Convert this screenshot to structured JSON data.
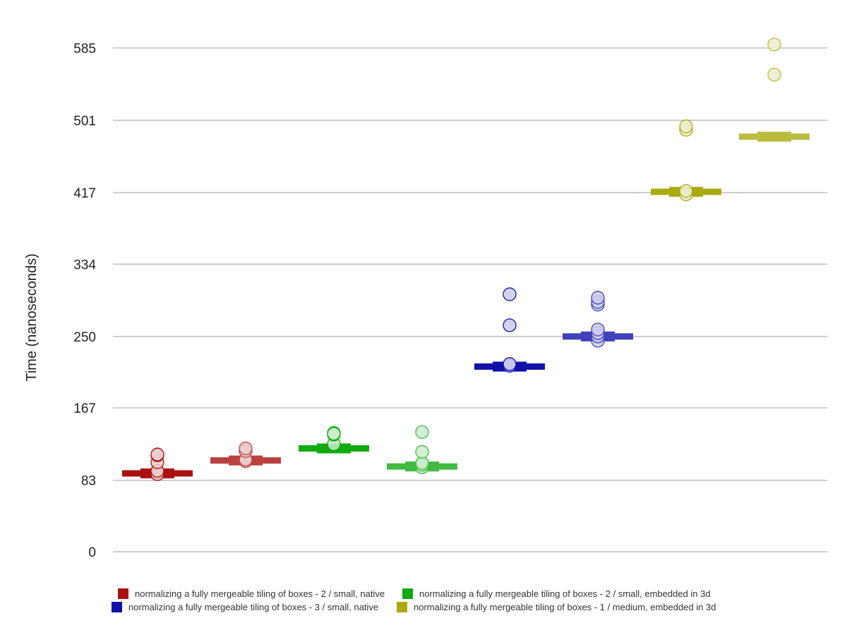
{
  "chart_data": {
    "type": "scatter",
    "ylabel": "Time (nanoseconds)",
    "xlabel": "",
    "title": "",
    "ylim": [
      0,
      585
    ],
    "yticks": [
      0,
      83,
      167,
      250,
      334,
      417,
      501,
      585
    ],
    "ytick_labels": [
      "0",
      "83",
      "167",
      "250",
      "334",
      "417",
      "501",
      "585"
    ],
    "grid": true,
    "legend_position": "bottom",
    "series": [
      {
        "name": "normalizing a fully mergeable tiling of boxes - 2 / small, native",
        "color": "#aa1111",
        "groups": [
          {
            "median": 91,
            "points": [
              92,
              90,
              94,
              104,
              112,
              113
            ]
          },
          {
            "median": 106,
            "points": [
              106,
              105,
              107,
              117,
              120
            ]
          }
        ]
      },
      {
        "name": "normalizing a fully mergeable tiling of boxes - 2 / small, embedded in 3d",
        "color": "#11aa11",
        "groups": [
          {
            "median": 120,
            "points": [
              125,
              136,
              138,
              137
            ]
          },
          {
            "median": 99,
            "points": [
              98,
              101,
              103,
              116,
              139
            ]
          }
        ]
      },
      {
        "name": "normalizing a fully mergeable tiling of boxes - 3 / small, native",
        "color": "#1111aa",
        "groups": [
          {
            "median": 215,
            "points": [
              216,
              218,
              263,
              299
            ]
          },
          {
            "median": 250,
            "points": [
              245,
              250,
              254,
              258,
              287,
              290,
              295
            ]
          }
        ]
      },
      {
        "name": "normalizing a fully mergeable tiling of boxes - 1 / medium, embedded in 3d",
        "color": "#aaaa11",
        "groups": [
          {
            "median": 418,
            "points": [
              415,
              419,
              490,
              494
            ]
          },
          {
            "median": 482,
            "points": [
              554,
              589
            ]
          }
        ]
      }
    ]
  }
}
